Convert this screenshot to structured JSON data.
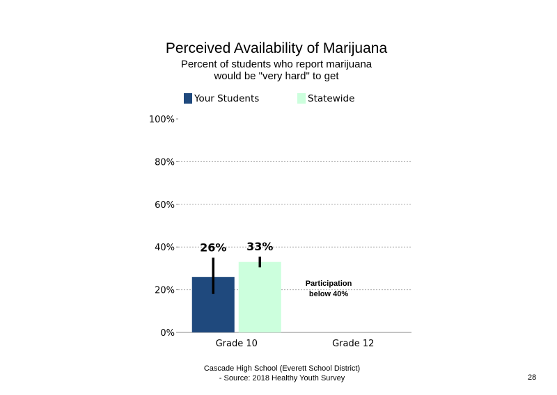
{
  "chart_data": {
    "type": "bar",
    "title": "Perceived Availability of Marijuana",
    "subtitle_lines": [
      "Percent of students who report marijuana",
      "would be \"very hard\" to get"
    ],
    "categories": [
      "Grade 10",
      "Grade 12"
    ],
    "series": [
      {
        "name": "Your Students",
        "color": "#1f497d",
        "values": [
          26,
          null
        ],
        "labels": [
          "26%",
          ""
        ],
        "error_low": [
          18,
          null
        ],
        "error_high": [
          35,
          null
        ]
      },
      {
        "name": "Statewide",
        "color": "#ccffdd",
        "values": [
          33,
          null
        ],
        "labels": [
          "33%",
          ""
        ],
        "error_low": [
          30.5,
          null
        ],
        "error_high": [
          35.5,
          null
        ]
      }
    ],
    "ylim": [
      0,
      100
    ],
    "yticks": [
      0,
      20,
      40,
      60,
      80,
      100
    ],
    "ytick_labels": [
      "0%",
      "20%",
      "40%",
      "60%",
      "80%",
      "100%"
    ],
    "grid": true,
    "legend_position": "top",
    "annotations": [
      {
        "category": "Grade 12",
        "lines": [
          "Participation",
          "below 40%"
        ]
      }
    ]
  },
  "footer": {
    "line1": "Cascade High School (Everett School District)",
    "line2": "- Source: 2018 Healthy  Youth Survey",
    "page_number": "28"
  }
}
